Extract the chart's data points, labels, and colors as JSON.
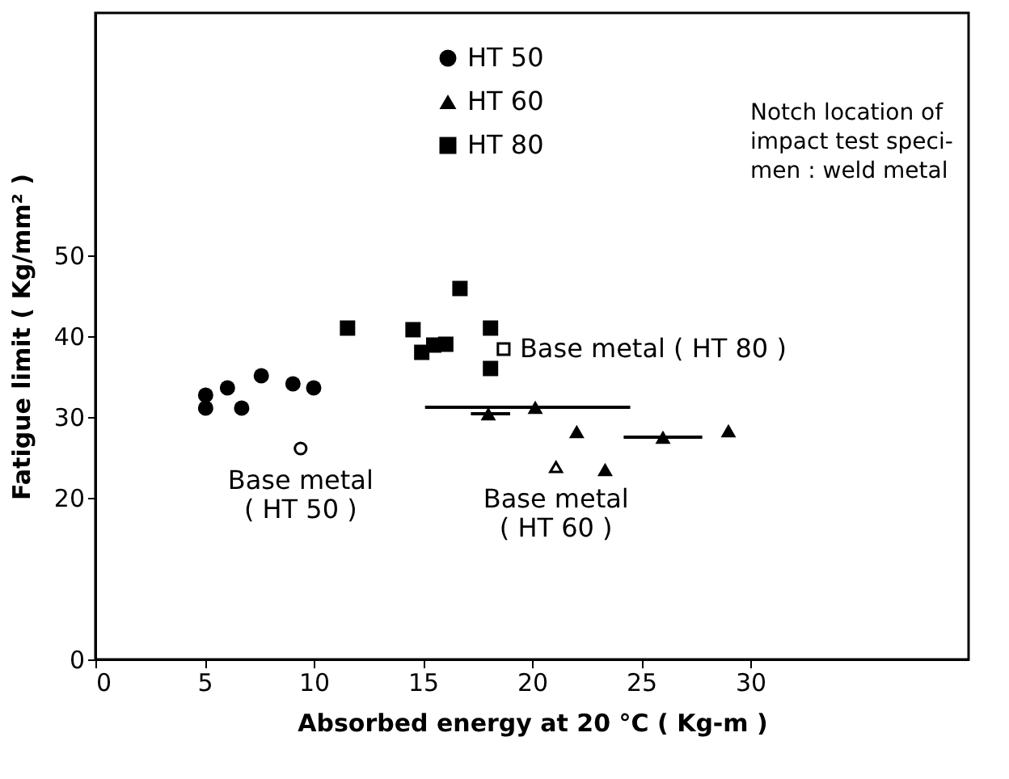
{
  "chart_data": {
    "type": "scatter",
    "xlabel": "Absorbed energy at 20 °C  ( Kg-m )",
    "ylabel": "Fatigue limit  ( Kg/mm² )",
    "xlim": [
      0,
      40
    ],
    "xticks": [
      0,
      5,
      10,
      15,
      20,
      25,
      30
    ],
    "ylim": [
      0,
      80
    ],
    "yticks": [
      0,
      20,
      30,
      40,
      50
    ],
    "grid": false,
    "legend": "top",
    "series": [
      {
        "name": "HT 50",
        "color": "#000000",
        "marker": "circle",
        "x": [
          5.05,
          5.05,
          6.05,
          6.7,
          7.6,
          9.05,
          10.0
        ],
        "values": [
          32.7,
          31.1,
          33.6,
          31.1,
          35.1,
          34.1,
          33.6
        ]
      },
      {
        "name": "HT 60",
        "color": "#000000",
        "marker": "triangle",
        "x": [
          18.0,
          20.15,
          22.05,
          23.35,
          26.0,
          29.0
        ],
        "values": [
          30.4,
          31.2,
          28.2,
          23.5,
          27.5,
          28.3
        ],
        "xerrors": [
          [
            17.2,
            19.0
          ],
          [
            15.1,
            24.5
          ],
          null,
          null,
          [
            24.2,
            27.8
          ],
          null
        ]
      },
      {
        "name": "HT 80",
        "color": "#000000",
        "marker": "square",
        "x": [
          11.55,
          14.55,
          14.95,
          15.5,
          16.05,
          16.7,
          18.1,
          18.1
        ],
        "values": [
          41.0,
          40.8,
          38.0,
          38.9,
          39.0,
          45.9,
          41.0,
          36.0
        ]
      },
      {
        "color": "#ffffff",
        "marker": "circle",
        "x": [
          9.4
        ],
        "values": [
          26.1
        ]
      },
      {
        "color": "#ffffff",
        "marker": "triangle",
        "x": [
          21.1
        ],
        "values": [
          23.8
        ]
      },
      {
        "color": "#ffffff",
        "marker": "square",
        "x": [
          18.7
        ],
        "values": [
          38.4
        ]
      }
    ],
    "annotations": [
      "Notch location of\nimpact test speci-\nmen : weld metal",
      {
        "text": "Base metal\n( HT 50 )",
        "x": 9.4,
        "y": 26.1
      },
      {
        "text": "Base metal\n( HT 60 )",
        "x": 21.1,
        "y": 23.8
      },
      {
        "text": "Base metal ( HT 80 )",
        "x": 18.7,
        "y": 38.4
      }
    ]
  }
}
